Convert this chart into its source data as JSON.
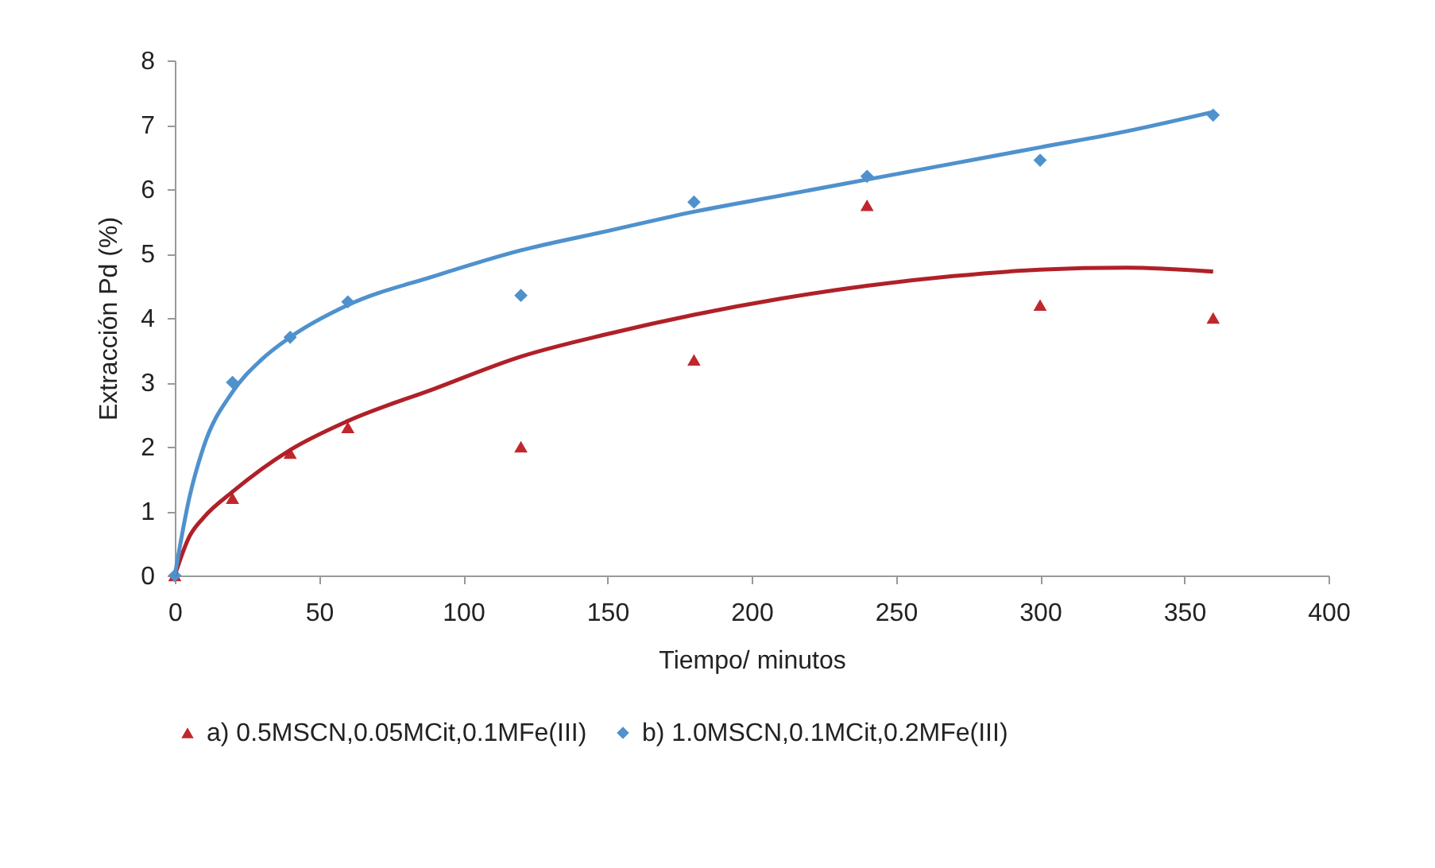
{
  "chart_data": {
    "type": "scatter",
    "xlabel": "Tiempo/ minutos",
    "ylabel": "Extracción Pd (%)",
    "x": [
      0,
      20,
      40,
      60,
      120,
      180,
      240,
      300,
      360
    ],
    "series": [
      {
        "name": "a) 0.5MSCN,0.05MCit,0.1MFe(III)",
        "color": "#c0272d",
        "marker": "triangle",
        "values": [
          0,
          1.2,
          1.9,
          2.3,
          2.0,
          3.35,
          5.75,
          4.2,
          4.0
        ]
      },
      {
        "name": "b) 1.0MSCN,0.1MCit,0.2MFe(III)",
        "color": "#4f91cd",
        "marker": "diamond",
        "values": [
          0,
          3.0,
          3.7,
          4.25,
          4.35,
          5.8,
          6.2,
          6.45,
          7.15
        ]
      },
      {
        "type": "line",
        "color": "#b02028",
        "x": [
          0,
          5,
          10,
          20,
          40,
          60,
          90,
          120,
          150,
          180,
          210,
          240,
          270,
          300,
          330,
          360
        ],
        "values": [
          0,
          0.6,
          0.9,
          1.3,
          1.95,
          2.4,
          2.9,
          3.4,
          3.75,
          4.05,
          4.3,
          4.5,
          4.65,
          4.75,
          4.78,
          4.72
        ]
      },
      {
        "type": "line",
        "color": "#4f91cd",
        "x": [
          0,
          5,
          10,
          20,
          30,
          40,
          60,
          90,
          120,
          150,
          180,
          210,
          240,
          270,
          300,
          330,
          360
        ],
        "values": [
          0,
          1.2,
          2.0,
          2.85,
          3.35,
          3.7,
          4.2,
          4.65,
          5.05,
          5.35,
          5.65,
          5.9,
          6.15,
          6.4,
          6.65,
          6.9,
          7.2
        ]
      }
    ],
    "xlim": [
      0,
      400
    ],
    "xticks": [
      0,
      50,
      100,
      150,
      200,
      250,
      300,
      350,
      400
    ],
    "ylim": [
      0,
      8
    ],
    "yticks": [
      0,
      1,
      2,
      3,
      4,
      5,
      6,
      7,
      8
    ],
    "legend": "bottom"
  }
}
